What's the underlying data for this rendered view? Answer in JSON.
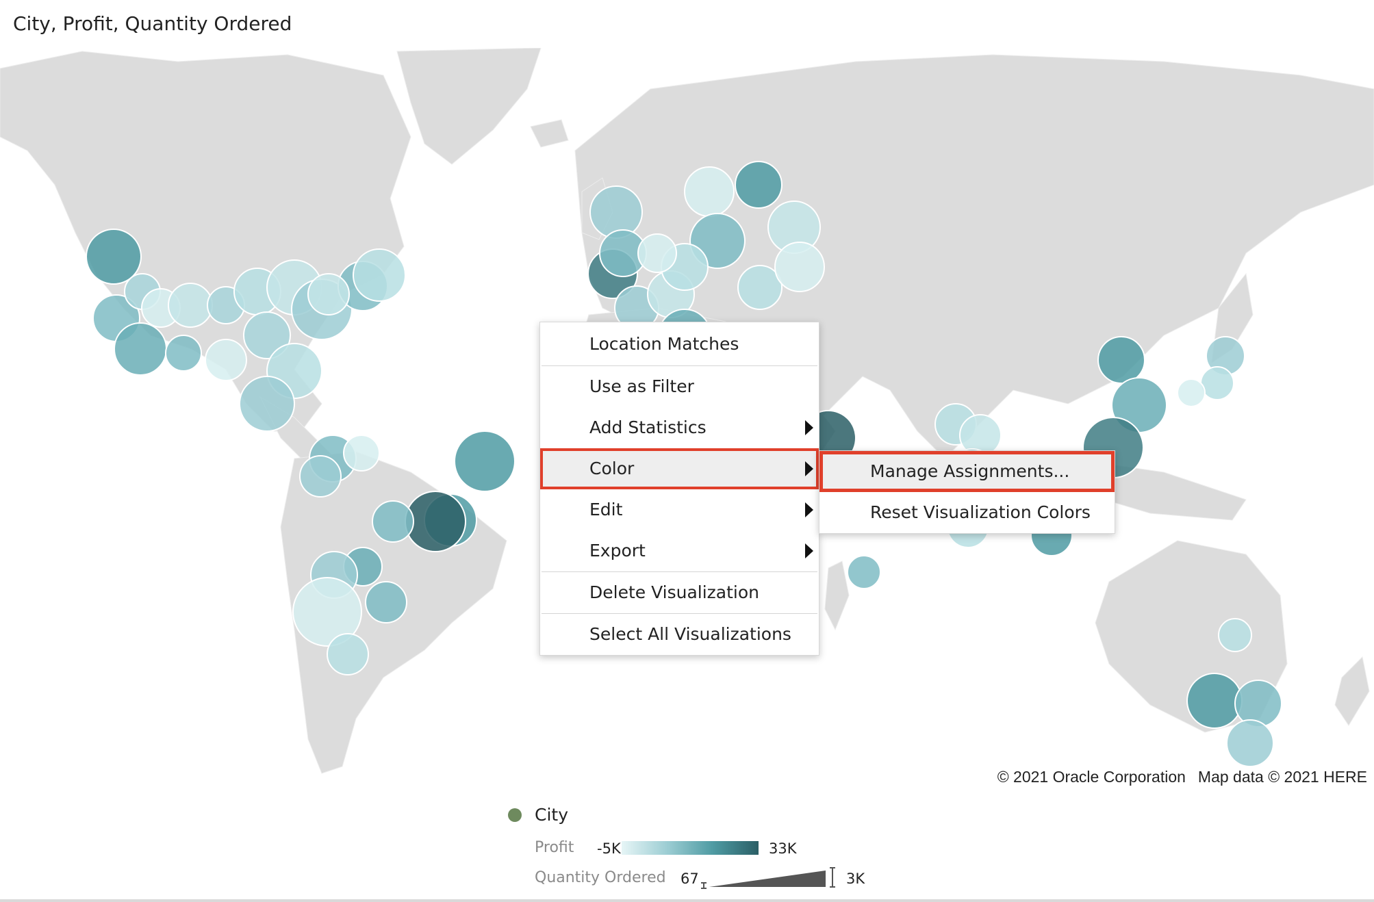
{
  "visualization": {
    "title": "City, Profit, Quantity Ordered"
  },
  "map": {
    "attribution": {
      "copyright": "© 2021 Oracle Corporation",
      "map_data": "Map data © 2021 HERE"
    },
    "land_color": "#dcdcdc",
    "bubble_color_low": "#e6f5f6",
    "bubble_color_high": "#2b5f66"
  },
  "context_menu": {
    "items": [
      {
        "label": "Location Matches"
      },
      {
        "label": "Use as Filter"
      },
      {
        "label": "Add Statistics"
      },
      {
        "label": "Color"
      },
      {
        "label": "Edit"
      },
      {
        "label": "Export"
      },
      {
        "label": "Delete Visualization"
      },
      {
        "label": "Select All Visualizations"
      }
    ],
    "highlighted": "Color",
    "highlight_color": "#e0402b"
  },
  "color_submenu": {
    "items": [
      {
        "label": "Manage Assignments..."
      },
      {
        "label": "Reset Visualization Colors"
      }
    ],
    "highlighted": "Manage Assignments..."
  },
  "legend": {
    "category_label": "City",
    "color_measure": {
      "label": "Profit",
      "min": "-5K",
      "max": "33K"
    },
    "size_measure": {
      "label": "Quantity Ordered",
      "min": "67",
      "max": "3K"
    }
  }
}
